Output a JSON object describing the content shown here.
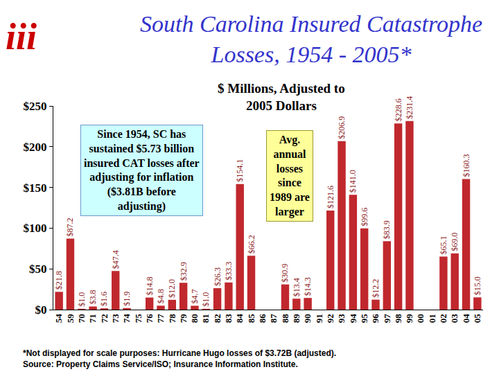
{
  "chart_data": {
    "type": "bar",
    "title": [
      "South Carolina Insured Catastrophe",
      "Losses, 1954 - 2005*"
    ],
    "subtitle": [
      "$ Millions, Adjusted to",
      "2005 Dollars"
    ],
    "logo": "iii",
    "categories": [
      "54",
      "59",
      "70",
      "71",
      "72",
      "73",
      "74",
      "75",
      "76",
      "77",
      "78",
      "79",
      "80",
      "81",
      "82",
      "83",
      "84",
      "85",
      "86",
      "87",
      "88",
      "89",
      "90",
      "91",
      "92",
      "93",
      "94",
      "95",
      "96",
      "97",
      "98",
      "99",
      "00",
      "01",
      "02",
      "03",
      "04",
      "05"
    ],
    "values": [
      21.8,
      87.2,
      1.0,
      3.8,
      1.6,
      47.4,
      1.9,
      null,
      14.8,
      4.8,
      12.0,
      32.9,
      4.7,
      1.0,
      26.3,
      33.3,
      154.1,
      66.2,
      null,
      null,
      30.9,
      13.4,
      14.3,
      null,
      121.6,
      206.9,
      141.0,
      99.6,
      12.2,
      83.9,
      228.6,
      231.4,
      null,
      null,
      65.1,
      69.0,
      160.3,
      15.0
    ],
    "value_labels": [
      "$21.8",
      "$87.2",
      "$1.0",
      "$3.8",
      "$1.6",
      "$47.4",
      "$1.9",
      null,
      "$14.8",
      "$4.8",
      "$12.0",
      "$32.9",
      "$4.7",
      "$1.0",
      "$26.3",
      "$33.3",
      "$154.1",
      "$66.2",
      null,
      null,
      "$30.9",
      "$13.4",
      "$14.3",
      null,
      "$121.6",
      "$206.9",
      "$141.0",
      "$99.6",
      "$12.2",
      "$83.9",
      "$228.6",
      "$231.4",
      null,
      null,
      "$65.1",
      "$69.0",
      "$160.3",
      "$15.0"
    ],
    "color": "#c0282d",
    "data_labels": true,
    "grid": false,
    "ylim": [
      0,
      250
    ],
    "yticks": [
      {
        "value": 0,
        "label": "$0"
      },
      {
        "value": 50,
        "label": "$50"
      },
      {
        "value": 100,
        "label": "$100"
      },
      {
        "value": 150,
        "label": "$150"
      },
      {
        "value": 200,
        "label": "$200"
      },
      {
        "value": 250,
        "label": "$250"
      }
    ],
    "annotations": [
      {
        "text": [
          "Since 1954, SC has",
          "sustained $5.73 billion",
          "insured CAT losses after",
          "adjusting for inflation",
          "($3.81B before",
          "adjusting)"
        ]
      },
      {
        "text": [
          "Avg.",
          "annual",
          "losses",
          "since",
          "1989 are",
          "larger"
        ]
      }
    ],
    "footnote": "*Not displayed for scale purposes: Hurricane Hugo losses of $3.72B (adjusted).",
    "source": "Source: Property Claims Service/ISO; Insurance Information Institute."
  }
}
